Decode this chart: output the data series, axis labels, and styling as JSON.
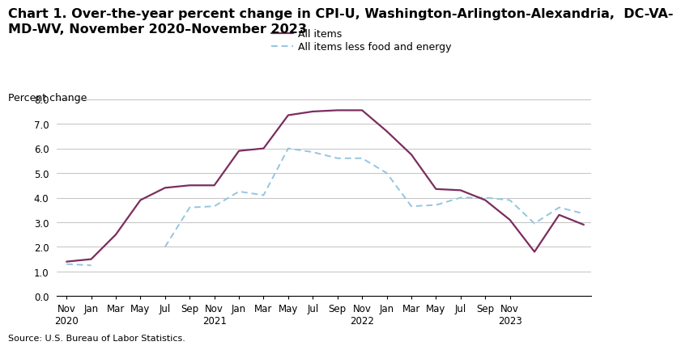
{
  "title_line1": "Chart 1. Over-the-year percent change in CPI-U, Washington-Arlington-Alexandria,  DC-VA-",
  "title_line2": "MD-WV, November 2020–November 2023",
  "ylabel": "Percent change",
  "source": "Source: U.S. Bureau of Labor Statistics.",
  "x_labels": [
    "Nov\n2020",
    "Jan",
    "Mar",
    "May",
    "Jul",
    "Sep",
    "Nov\n2021",
    "Jan",
    "Mar",
    "May",
    "Jul",
    "Sep",
    "Nov\n2022",
    "Jan",
    "Mar",
    "May",
    "Jul",
    "Sep",
    "Nov\n2023"
  ],
  "all_items": [
    1.4,
    1.5,
    2.5,
    3.9,
    4.4,
    4.5,
    4.5,
    5.9,
    6.0,
    7.35,
    7.5,
    7.55,
    7.55,
    6.7,
    5.75,
    4.35,
    4.3,
    3.9,
    3.1,
    1.8,
    3.3,
    2.9
  ],
  "all_items_less": [
    1.3,
    1.25,
    null,
    null,
    2.0,
    3.6,
    3.65,
    4.25,
    4.1,
    6.0,
    5.85,
    5.6,
    5.6,
    5.0,
    3.65,
    3.7,
    4.0,
    4.0,
    3.9,
    2.95,
    3.6,
    3.35
  ],
  "all_items_color": "#7B2D5E",
  "all_items_less_color": "#93C6E0",
  "ylim": [
    0.0,
    8.0
  ],
  "yticks": [
    0.0,
    1.0,
    2.0,
    3.0,
    4.0,
    5.0,
    6.0,
    7.0,
    8.0
  ],
  "title_fontsize": 11.5,
  "label_fontsize": 9,
  "tick_fontsize": 8.5
}
